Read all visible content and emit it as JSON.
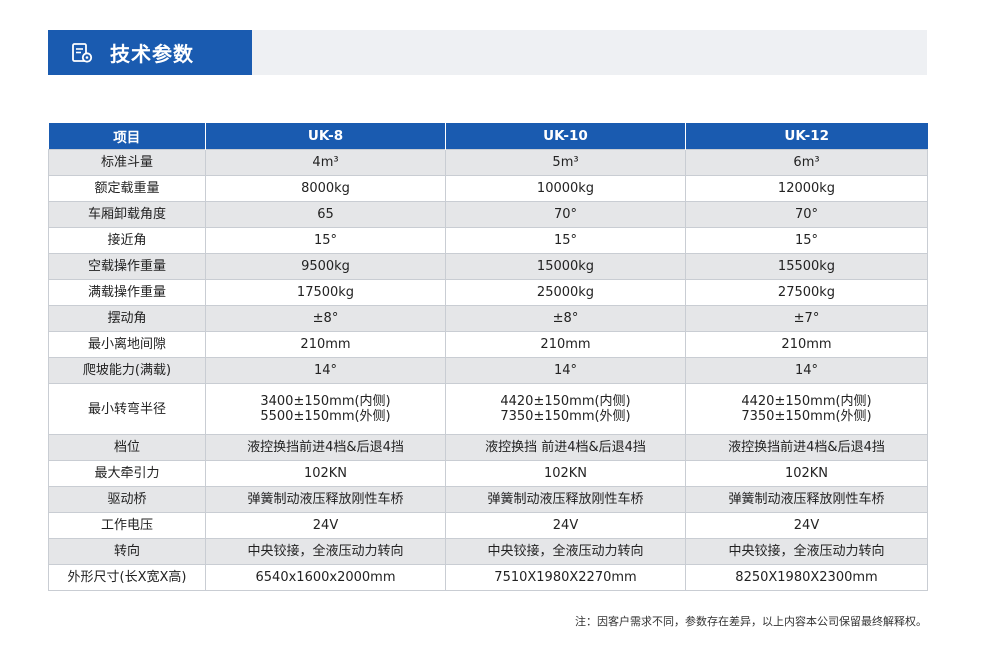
{
  "header": {
    "title": "技术参数",
    "icon": "document-settings-icon",
    "accent_color": "#1a5bb0"
  },
  "table": {
    "columns": [
      "项目",
      "UK-8",
      "UK-10",
      "UK-12"
    ],
    "rows": [
      {
        "label": "标准斗量",
        "values": [
          [
            "4m³"
          ],
          [
            "5m³"
          ],
          [
            "6m³"
          ]
        ]
      },
      {
        "label": "额定载重量",
        "values": [
          [
            "8000kg"
          ],
          [
            "10000kg"
          ],
          [
            "12000kg"
          ]
        ]
      },
      {
        "label": "车厢卸载角度",
        "values": [
          [
            "65"
          ],
          [
            "70°"
          ],
          [
            "70°"
          ]
        ]
      },
      {
        "label": "接近角",
        "values": [
          [
            "15°"
          ],
          [
            "15°"
          ],
          [
            "15°"
          ]
        ]
      },
      {
        "label": "空载操作重量",
        "values": [
          [
            "9500kg"
          ],
          [
            "15000kg"
          ],
          [
            "15500kg"
          ]
        ]
      },
      {
        "label": "满载操作重量",
        "values": [
          [
            "17500kg"
          ],
          [
            "25000kg"
          ],
          [
            "27500kg"
          ]
        ]
      },
      {
        "label": "摆动角",
        "values": [
          [
            "±8°"
          ],
          [
            "±8°"
          ],
          [
            "±7°"
          ]
        ]
      },
      {
        "label": "最小离地间隙",
        "values": [
          [
            "210mm"
          ],
          [
            "210mm"
          ],
          [
            "210mm"
          ]
        ]
      },
      {
        "label": "爬坡能力(满载)",
        "values": [
          [
            "14°"
          ],
          [
            "14°"
          ],
          [
            "14°"
          ]
        ]
      },
      {
        "label": "最小转弯半径",
        "values": [
          [
            "3400±150mm(内侧)",
            "5500±150mm(外侧)"
          ],
          [
            "4420±150mm(内侧)",
            "7350±150mm(外侧)"
          ],
          [
            "4420±150mm(内侧)",
            "7350±150mm(外侧)"
          ]
        ]
      },
      {
        "label": "档位",
        "values": [
          [
            "液控换挡前进4档&后退4挡"
          ],
          [
            "液控换挡 前进4档&后退4挡"
          ],
          [
            "液控换挡前进4档&后退4挡"
          ]
        ]
      },
      {
        "label": "最大牵引力",
        "values": [
          [
            "102KN"
          ],
          [
            "102KN"
          ],
          [
            "102KN"
          ]
        ]
      },
      {
        "label": "驱动桥",
        "values": [
          [
            "弹簧制动液压释放刚性车桥"
          ],
          [
            "弹簧制动液压释放刚性车桥"
          ],
          [
            "弹簧制动液压释放刚性车桥"
          ]
        ]
      },
      {
        "label": "工作电压",
        "values": [
          [
            "24V"
          ],
          [
            "24V"
          ],
          [
            "24V"
          ]
        ]
      },
      {
        "label": "转向",
        "values": [
          [
            "中央铰接，全液压动力转向"
          ],
          [
            "中央铰接，全液压动力转向"
          ],
          [
            "中央铰接，全液压动力转向"
          ]
        ]
      },
      {
        "label": "外形尺寸(长X宽X高)",
        "values": [
          [
            "6540x1600x2000mm"
          ],
          [
            "7510X1980X2270mm"
          ],
          [
            "8250X1980X2300mm"
          ]
        ]
      }
    ]
  },
  "footnote": "注：因客户需求不同，参数存在差异，以上内容本公司保留最终解释权。"
}
